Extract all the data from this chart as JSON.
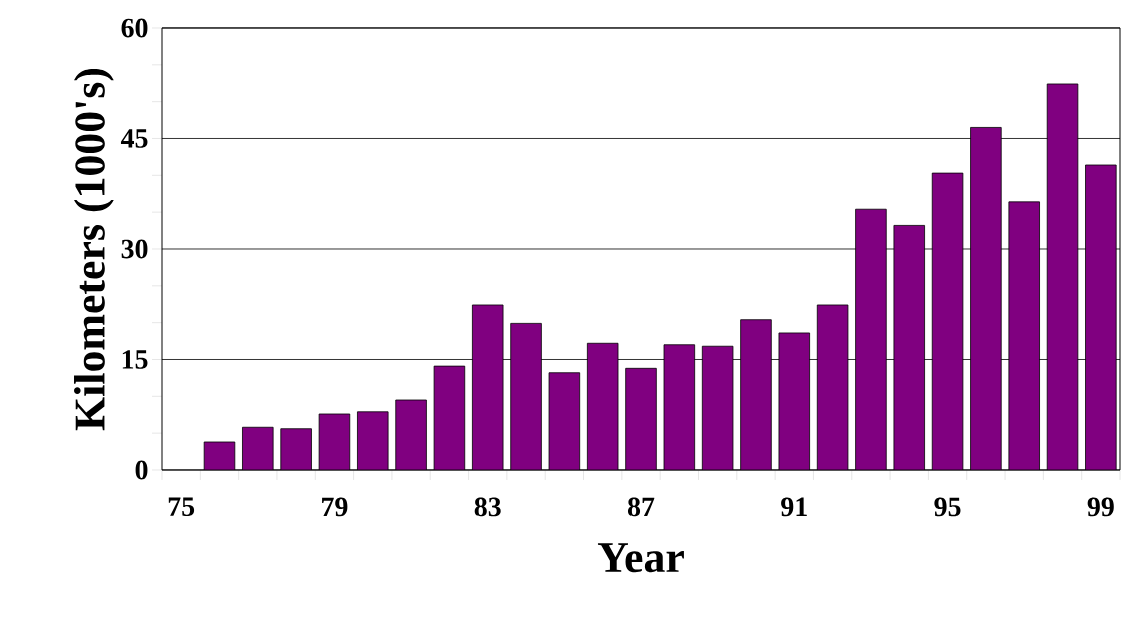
{
  "chart_data": {
    "type": "bar",
    "xlabel": "Year",
    "ylabel": "Kilometers (1000's)",
    "categories": [
      "75",
      null,
      null,
      null,
      "79",
      null,
      null,
      null,
      "83",
      null,
      null,
      null,
      "87",
      null,
      null,
      null,
      "91",
      null,
      null,
      null,
      "95",
      null,
      null,
      null,
      "99"
    ],
    "values": [
      null,
      3.8,
      5.8,
      5.6,
      7.6,
      7.9,
      9.5,
      14.1,
      22.4,
      19.9,
      13.2,
      17.2,
      13.8,
      17.0,
      16.8,
      20.4,
      18.6,
      22.4,
      35.4,
      33.2,
      40.3,
      46.5,
      36.4,
      52.4,
      41.4
    ],
    "color": "#800080",
    "ylim": [
      0,
      60
    ],
    "yticks": [
      0,
      15,
      30,
      45,
      60
    ],
    "grid": "y"
  }
}
